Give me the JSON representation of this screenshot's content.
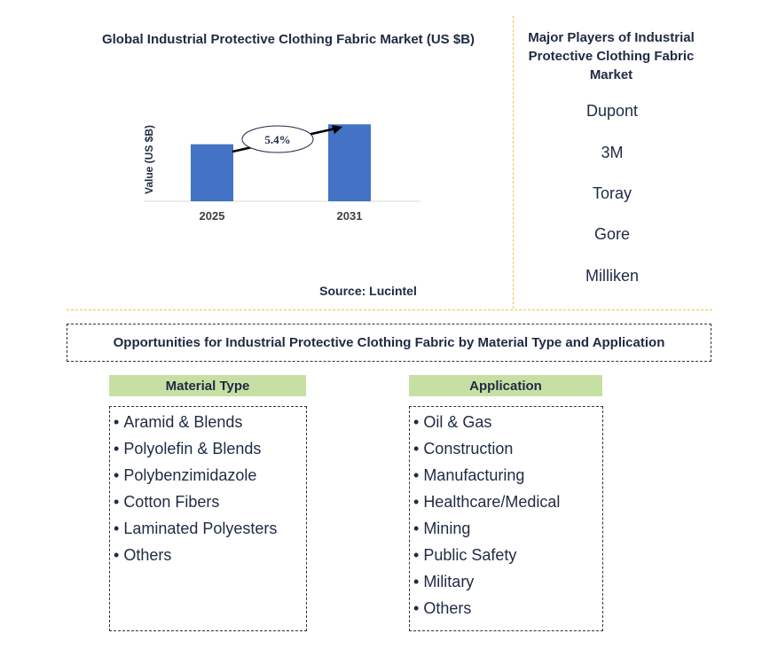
{
  "chart_data": {
    "type": "bar",
    "title": "Global Industrial Protective Clothing Fabric Market (US $B)",
    "ylabel": "Value (US $B)",
    "xlabel": "",
    "categories": [
      "2025",
      "2031"
    ],
    "values": [
      1.0,
      1.35
    ],
    "ylim": [
      0,
      1.4
    ],
    "annotation": "5.4%",
    "bar_color": "#4472c4",
    "grid": false,
    "legend": "none"
  },
  "source": "Source: Lucintel",
  "players": {
    "title": "Major Players of Industrial Protective Clothing Fabric Market",
    "items": [
      "Dupont",
      "3M",
      "Toray",
      "Gore",
      "Milliken"
    ]
  },
  "opportunities_title": "Opportunities for Industrial Protective Clothing Fabric by Material Type and Application",
  "material_type": {
    "header": "Material Type",
    "items": [
      "Aramid & Blends",
      "Polyolefin & Blends",
      "Polybenzimidazole",
      "Cotton Fibers",
      "Laminated Polyesters",
      "Others"
    ]
  },
  "application": {
    "header": "Application",
    "items": [
      "Oil & Gas",
      "Construction",
      "Manufacturing",
      "Healthcare/Medical",
      "Mining",
      "Public Safety",
      "Military",
      "Others"
    ]
  },
  "colors": {
    "bar": "#4472c4",
    "header_bg": "#c6e0a4",
    "divider": "#e8c84a",
    "text": "#1f2a44"
  }
}
